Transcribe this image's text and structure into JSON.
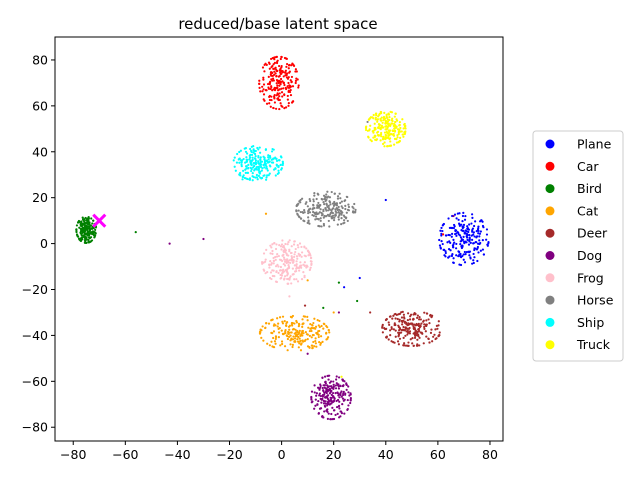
{
  "chart_data": {
    "type": "scatter",
    "title": "reduced/base latent space",
    "xlabel": "",
    "ylabel": "",
    "xlim": [
      -87,
      85
    ],
    "ylim": [
      -86,
      90
    ],
    "xticks": [
      -80,
      -60,
      -40,
      -20,
      0,
      20,
      40,
      60,
      80
    ],
    "yticks": [
      -80,
      -60,
      -40,
      -20,
      0,
      20,
      40,
      60,
      80
    ],
    "grid": false,
    "legend_position": "right-outside",
    "series": [
      {
        "name": "Plane",
        "color": "#0000ff",
        "clusters": [
          {
            "center": [
              70,
              2
            ],
            "spread": [
              5,
              6
            ],
            "count": 220
          }
        ],
        "stray": [
          [
            40,
            19
          ],
          [
            30,
            -15
          ],
          [
            24,
            -19
          ]
        ]
      },
      {
        "name": "Car",
        "color": "#ff0000",
        "clusters": [
          {
            "center": [
              -1,
              70
            ],
            "spread": [
              4,
              6
            ],
            "count": 220
          }
        ],
        "stray": [
          [
            1,
            65
          ],
          [
            62,
            4
          ]
        ]
      },
      {
        "name": "Bird",
        "color": "#008000",
        "clusters": [
          {
            "center": [
              -75,
              6
            ],
            "spread": [
              2,
              3
            ],
            "count": 220
          }
        ],
        "stray": [
          [
            -56,
            5
          ],
          [
            16,
            -28
          ],
          [
            29,
            -25
          ],
          [
            22,
            -17
          ]
        ]
      },
      {
        "name": "Cat",
        "color": "#ffa500",
        "clusters": [
          {
            "center": [
              5,
              -39
            ],
            "spread": [
              7,
              4
            ],
            "count": 220
          }
        ],
        "stray": [
          [
            -6,
            13
          ],
          [
            10,
            -16
          ],
          [
            20,
            -30
          ]
        ]
      },
      {
        "name": "Deer",
        "color": "#a52a2a",
        "clusters": [
          {
            "center": [
              50,
              -37
            ],
            "spread": [
              6,
              4
            ],
            "count": 220
          }
        ],
        "stray": [
          [
            34,
            -30
          ],
          [
            9,
            -27
          ]
        ]
      },
      {
        "name": "Dog",
        "color": "#800080",
        "clusters": [
          {
            "center": [
              19,
              -67
            ],
            "spread": [
              4,
              5
            ],
            "count": 220
          }
        ],
        "stray": [
          [
            -43,
            0
          ],
          [
            -30,
            2
          ],
          [
            10,
            -48
          ],
          [
            22,
            -30
          ],
          [
            66,
            12
          ]
        ]
      },
      {
        "name": "Frog",
        "color": "#ffc0cb",
        "clusters": [
          {
            "center": [
              2,
              -8
            ],
            "spread": [
              5,
              5
            ],
            "count": 220
          }
        ],
        "stray": [
          [
            3,
            -23
          ]
        ]
      },
      {
        "name": "Horse",
        "color": "#808080",
        "clusters": [
          {
            "center": [
              17,
              15
            ],
            "spread": [
              6,
              4
            ],
            "count": 220
          }
        ],
        "stray": [
          [
            33,
            53
          ]
        ]
      },
      {
        "name": "Ship",
        "color": "#00ffff",
        "clusters": [
          {
            "center": [
              -9,
              35
            ],
            "spread": [
              5,
              4
            ],
            "count": 220
          }
        ],
        "stray": [
          [
            -15,
            28
          ]
        ]
      },
      {
        "name": "Truck",
        "color": "#ffff00",
        "clusters": [
          {
            "center": [
              40,
              50
            ],
            "spread": [
              4,
              4
            ],
            "count": 220
          }
        ],
        "stray": [
          [
            23,
            -58
          ]
        ]
      }
    ],
    "marker": {
      "symbol": "x",
      "x": -70,
      "y": 10,
      "color": "#ff00ff"
    }
  }
}
